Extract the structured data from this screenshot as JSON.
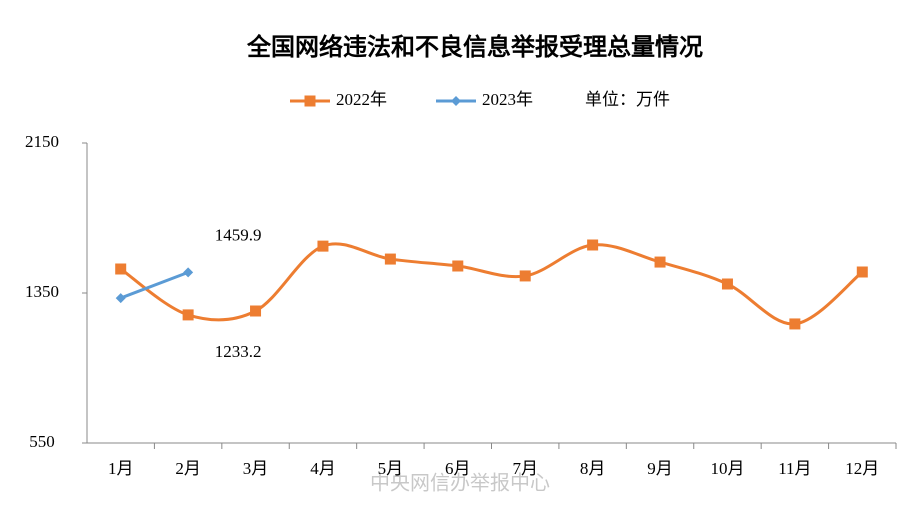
{
  "chart_data": {
    "type": "line",
    "title": "全国网络违法和不良信息举报受理总量情况",
    "unit_label": "单位：万件",
    "watermark": "中央网信办举报中心",
    "categories": [
      "1月",
      "2月",
      "3月",
      "4月",
      "5月",
      "6月",
      "7月",
      "8月",
      "9月",
      "10月",
      "11月",
      "12月"
    ],
    "series": [
      {
        "name": "2022年",
        "color": "#ed7d31",
        "marker": "square",
        "smooth": true,
        "values": [
          1478,
          1233.2,
          1254,
          1600,
          1531,
          1494,
          1441,
          1606,
          1515,
          1398,
          1185,
          1462
        ]
      },
      {
        "name": "2023年",
        "color": "#5b9bd5",
        "marker": "diamond",
        "smooth": false,
        "values": [
          1323,
          1459.9,
          null,
          null,
          null,
          null,
          null,
          null,
          null,
          null,
          null,
          null
        ]
      }
    ],
    "data_labels": [
      "chart_data.series.1.values.1",
      "chart_data.series.0.values.1"
    ],
    "ylim": [
      550,
      2150
    ],
    "yticks": [
      550,
      1350,
      2150
    ],
    "grid": false
  }
}
